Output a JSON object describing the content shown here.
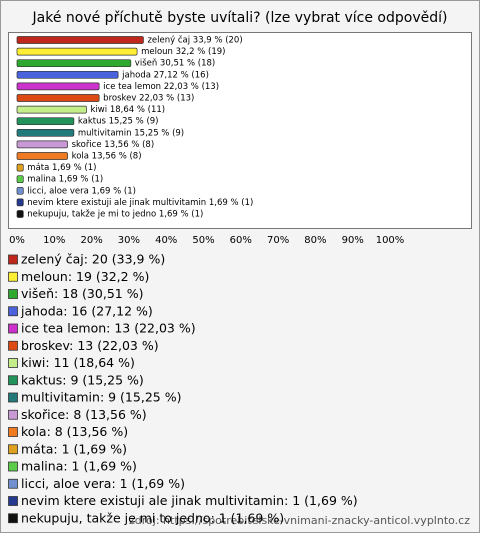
{
  "chart_data": {
    "type": "bar",
    "orientation": "horizontal",
    "title": "Jaké nové příchutě byste uvítali? (lze vybrat více odpovědí)",
    "values": [
      33.9,
      32.2,
      30.51,
      27.12,
      22.03,
      22.03,
      18.64,
      15.25,
      15.25,
      13.56,
      13.56,
      1.69,
      1.69,
      1.69,
      1.69,
      1.69
    ],
    "value_labels": [
      "zelený čaj 33,9 % (20)",
      "meloun 32,2 % (19)",
      "višeň 30,51 % (18)",
      "jahoda 27,12 % (16)",
      "ice tea lemon 22,03 % (13)",
      "broskev 22,03 % (13)",
      "kiwi 18,64 % (11)",
      "kaktus 15,25 % (9)",
      "multivitamin 15,25 % (9)",
      "skořice 13,56 % (8)",
      "kola 13,56 % (8)",
      "máta 1,69 % (1)",
      "malina 1,69 % (1)",
      "licci, aloe vera 1,69 % (1)",
      "nevim ktere existuji ale jinak multivitamin 1,69 % (1)",
      "nekupuju, takže je mi to jedno 1,69 % (1)"
    ],
    "colors": [
      "#c0281e",
      "#ffee33",
      "#2ea82e",
      "#4a62dc",
      "#cc33cc",
      "#dd4a14",
      "#c4ee8a",
      "#22935a",
      "#237a7a",
      "#c999d6",
      "#ee7a22",
      "#dda020",
      "#5acc48",
      "#7090d0",
      "#243a90",
      "#111111"
    ],
    "legend": [
      "zelený čaj: 20 (33,9 %)",
      "meloun: 19 (32,2 %)",
      "višeň: 18 (30,51 %)",
      "jahoda: 16 (27,12 %)",
      "ice tea lemon: 13 (22,03 %)",
      "broskev: 13 (22,03 %)",
      "kiwi: 11 (18,64 %)",
      "kaktus: 9 (15,25 %)",
      "multivitamin: 9 (15,25 %)",
      "skořice: 8 (13,56 %)",
      "kola: 8 (13,56 %)",
      "máta: 1 (1,69 %)",
      "malina: 1 (1,69 %)",
      "licci, aloe vera: 1 (1,69 %)",
      "nevim ktere existuji ale jinak multivitamin: 1 (1,69 %)",
      "nekupuju, takže je mi to jedno: 1 (1,69 %)"
    ],
    "xlim": [
      0,
      100
    ],
    "xticks": [
      {
        "value": 0,
        "label": "0%"
      },
      {
        "value": 10,
        "label": "10%"
      },
      {
        "value": 20,
        "label": "20%"
      },
      {
        "value": 30,
        "label": "30%"
      },
      {
        "value": 40,
        "label": "40%"
      },
      {
        "value": 50,
        "label": "50%"
      },
      {
        "value": 60,
        "label": "60%"
      },
      {
        "value": 70,
        "label": "70%"
      },
      {
        "value": 80,
        "label": "80%"
      },
      {
        "value": 90,
        "label": "90%"
      },
      {
        "value": 100,
        "label": "100%"
      }
    ],
    "grid": false,
    "source": "zdroj: https://spotrebitelske-vnimani-znacky-anticol.vyplnto.cz"
  }
}
